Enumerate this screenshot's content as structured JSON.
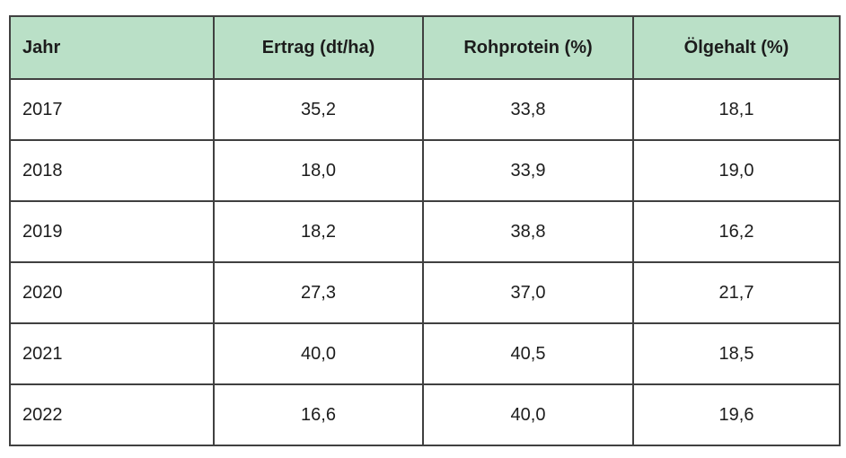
{
  "table": {
    "columns": [
      {
        "label": "Jahr"
      },
      {
        "label": "Ertrag (dt/ha)"
      },
      {
        "label": "Rohprotein (%)"
      },
      {
        "label": "Ölgehalt (%)"
      }
    ],
    "rows": [
      [
        "2017",
        "35,2",
        "33,8",
        "18,1"
      ],
      [
        "2018",
        "18,0",
        "33,9",
        "19,0"
      ],
      [
        "2019",
        "18,2",
        "38,8",
        "16,2"
      ],
      [
        "2020",
        "27,3",
        "37,0",
        "21,7"
      ],
      [
        "2021",
        "40,0",
        "40,5",
        "18,5"
      ],
      [
        "2022",
        "16,6",
        "40,0",
        "19,6"
      ]
    ]
  },
  "colors": {
    "header_bg": "#bae0c7",
    "border": "#404040",
    "text": "#1c1c1c",
    "page_bg": "#ffffff"
  },
  "chart_data": {
    "type": "table",
    "title": "",
    "columns": [
      "Jahr",
      "Ertrag (dt/ha)",
      "Rohprotein (%)",
      "Ölgehalt (%)"
    ],
    "categories": [
      "2017",
      "2018",
      "2019",
      "2020",
      "2021",
      "2022"
    ],
    "series": [
      {
        "name": "Ertrag (dt/ha)",
        "values": [
          35.2,
          18.0,
          18.2,
          27.3,
          40.0,
          16.6
        ]
      },
      {
        "name": "Rohprotein (%)",
        "values": [
          33.8,
          33.9,
          38.8,
          37.0,
          40.5,
          40.0
        ]
      },
      {
        "name": "Ölgehalt (%)",
        "values": [
          18.1,
          19.0,
          16.2,
          21.7,
          18.5,
          19.6
        ]
      }
    ],
    "rows": [
      [
        "2017",
        35.2,
        33.8,
        18.1
      ],
      [
        "2018",
        18.0,
        33.9,
        19.0
      ],
      [
        "2019",
        18.2,
        38.8,
        16.2
      ],
      [
        "2020",
        27.3,
        37.0,
        21.7
      ],
      [
        "2021",
        40.0,
        40.5,
        18.5
      ],
      [
        "2022",
        16.6,
        40.0,
        19.6
      ]
    ]
  }
}
